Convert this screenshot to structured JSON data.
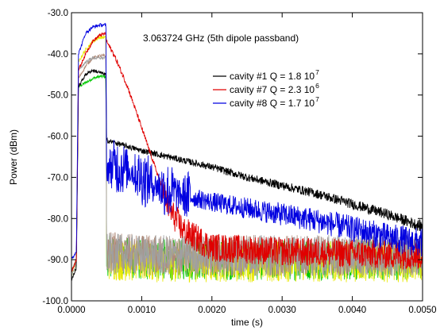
{
  "colors": {
    "cavity1": "#000000",
    "cavity7": "#e00000",
    "cavity8": "#0000e0",
    "noise_green": "#00c800",
    "noise_yellow": "#e8e800",
    "noise_brown": "#b08a78",
    "noise_gray": "#a0a0a0"
  },
  "chart_data": {
    "type": "line",
    "title": "",
    "annotation": "3.063724 GHz (5th dipole passband)",
    "xlabel": "time (s)",
    "ylabel": "Power (dBm)",
    "xlim": [
      0.0,
      0.005
    ],
    "ylim": [
      -100,
      -30
    ],
    "grid": false,
    "legend_position": "upper-right",
    "x_ticks": [
      0.0,
      0.001,
      0.002,
      0.003,
      0.004,
      0.005
    ],
    "x_tick_labels": [
      "0.0000",
      "0.0010",
      "0.0020",
      "0.0030",
      "0.0040",
      "0.0050"
    ],
    "y_ticks": [
      -100,
      -90,
      -80,
      -70,
      -60,
      -50,
      -40,
      -30
    ],
    "y_tick_labels": [
      "-100.0",
      "-90.0",
      "-80.0",
      "-70.0",
      "-60.0",
      "-50.0",
      "-40.0",
      "-30.0"
    ],
    "series": [
      {
        "name": "cavity #1  Q = 1.8 10",
        "superscript": "7",
        "color": "#000000",
        "x": [
          0.0,
          7e-05,
          0.0001,
          0.0002,
          0.0003,
          0.0004,
          0.00049,
          0.0005,
          0.0006,
          0.0008,
          0.001,
          0.0015,
          0.002,
          0.0025,
          0.003,
          0.0035,
          0.004,
          0.0045,
          0.005
        ],
        "y": [
          -95,
          -92,
          -48,
          -45,
          -44,
          -44.5,
          -45,
          -61,
          -61.5,
          -62.5,
          -63.5,
          -65.5,
          -67.5,
          -70,
          -72,
          -74,
          -76.5,
          -79,
          -82
        ]
      },
      {
        "name": "cavity #7  Q = 2.3 10",
        "superscript": "6",
        "color": "#e00000",
        "x": [
          0.0,
          7e-05,
          0.0001,
          0.0002,
          0.0003,
          0.0004,
          0.00049,
          0.0005,
          0.0006,
          0.0007,
          0.0008,
          0.0009,
          0.001,
          0.0011,
          0.0012,
          0.0013,
          0.0014,
          0.0016,
          0.002,
          0.003,
          0.004,
          0.005
        ],
        "y": [
          -93,
          -90,
          -44,
          -40,
          -37,
          -35.5,
          -35,
          -37,
          -40,
          -44,
          -48,
          -53,
          -58,
          -63,
          -68,
          -73,
          -78,
          -83,
          -87,
          -88,
          -88.5,
          -89
        ]
      },
      {
        "name": "cavity #8  Q = 1.7 10",
        "superscript": "7",
        "color": "#0000e0",
        "x": [
          0.0,
          7e-05,
          0.0001,
          0.0002,
          0.0003,
          0.0004,
          0.00049,
          0.0005,
          0.0006,
          0.0008,
          0.001,
          0.0012,
          0.0015,
          0.002,
          0.0025,
          0.003,
          0.0035,
          0.004,
          0.0045,
          0.005
        ],
        "y": [
          -90,
          -88,
          -40,
          -35,
          -33.5,
          -33,
          -33,
          -68,
          -67,
          -68,
          -70,
          -72,
          -74,
          -76,
          -77.5,
          -79,
          -80.5,
          -82.5,
          -84.5,
          -86
        ]
      },
      {
        "color": "#00c800",
        "x": [
          0.0,
          7e-05,
          0.0001,
          0.0002,
          0.0003,
          0.0004,
          0.00049,
          0.0005,
          0.001,
          0.002,
          0.003,
          0.004,
          0.005
        ],
        "y": [
          -93,
          -90,
          -48,
          -47,
          -46,
          -45.5,
          -45.5,
          -89,
          -90,
          -90,
          -90,
          -90,
          -90
        ]
      },
      {
        "color": "#e8e800",
        "x": [
          0.0,
          7e-05,
          0.0001,
          0.0002,
          0.0003,
          0.0004,
          0.00049,
          0.0005,
          0.001,
          0.002,
          0.003,
          0.004,
          0.005
        ],
        "y": [
          -94,
          -91,
          -42,
          -39,
          -37,
          -36,
          -36,
          -90,
          -90.5,
          -90.5,
          -90.5,
          -90.5,
          -90.5
        ]
      },
      {
        "color": "#b08a78",
        "x": [
          0.0,
          7e-05,
          0.0001,
          0.0002,
          0.0003,
          0.0004,
          0.00049,
          0.0005,
          0.001,
          0.002,
          0.003,
          0.004,
          0.005
        ],
        "y": [
          -93,
          -90,
          -46,
          -43,
          -41,
          -40.5,
          -40.5,
          -88,
          -89,
          -89,
          -89,
          -89,
          -89
        ]
      },
      {
        "color": "#a0a0a0",
        "x": [
          0.0,
          7e-05,
          0.0001,
          0.0002,
          0.0003,
          0.0004,
          0.00049,
          0.0005,
          0.001,
          0.002,
          0.003,
          0.004,
          0.005
        ],
        "y": [
          -94,
          -91,
          -44,
          -42,
          -41,
          -41,
          -41,
          -88.5,
          -89,
          -89,
          -89,
          -89,
          -89
        ]
      }
    ]
  }
}
